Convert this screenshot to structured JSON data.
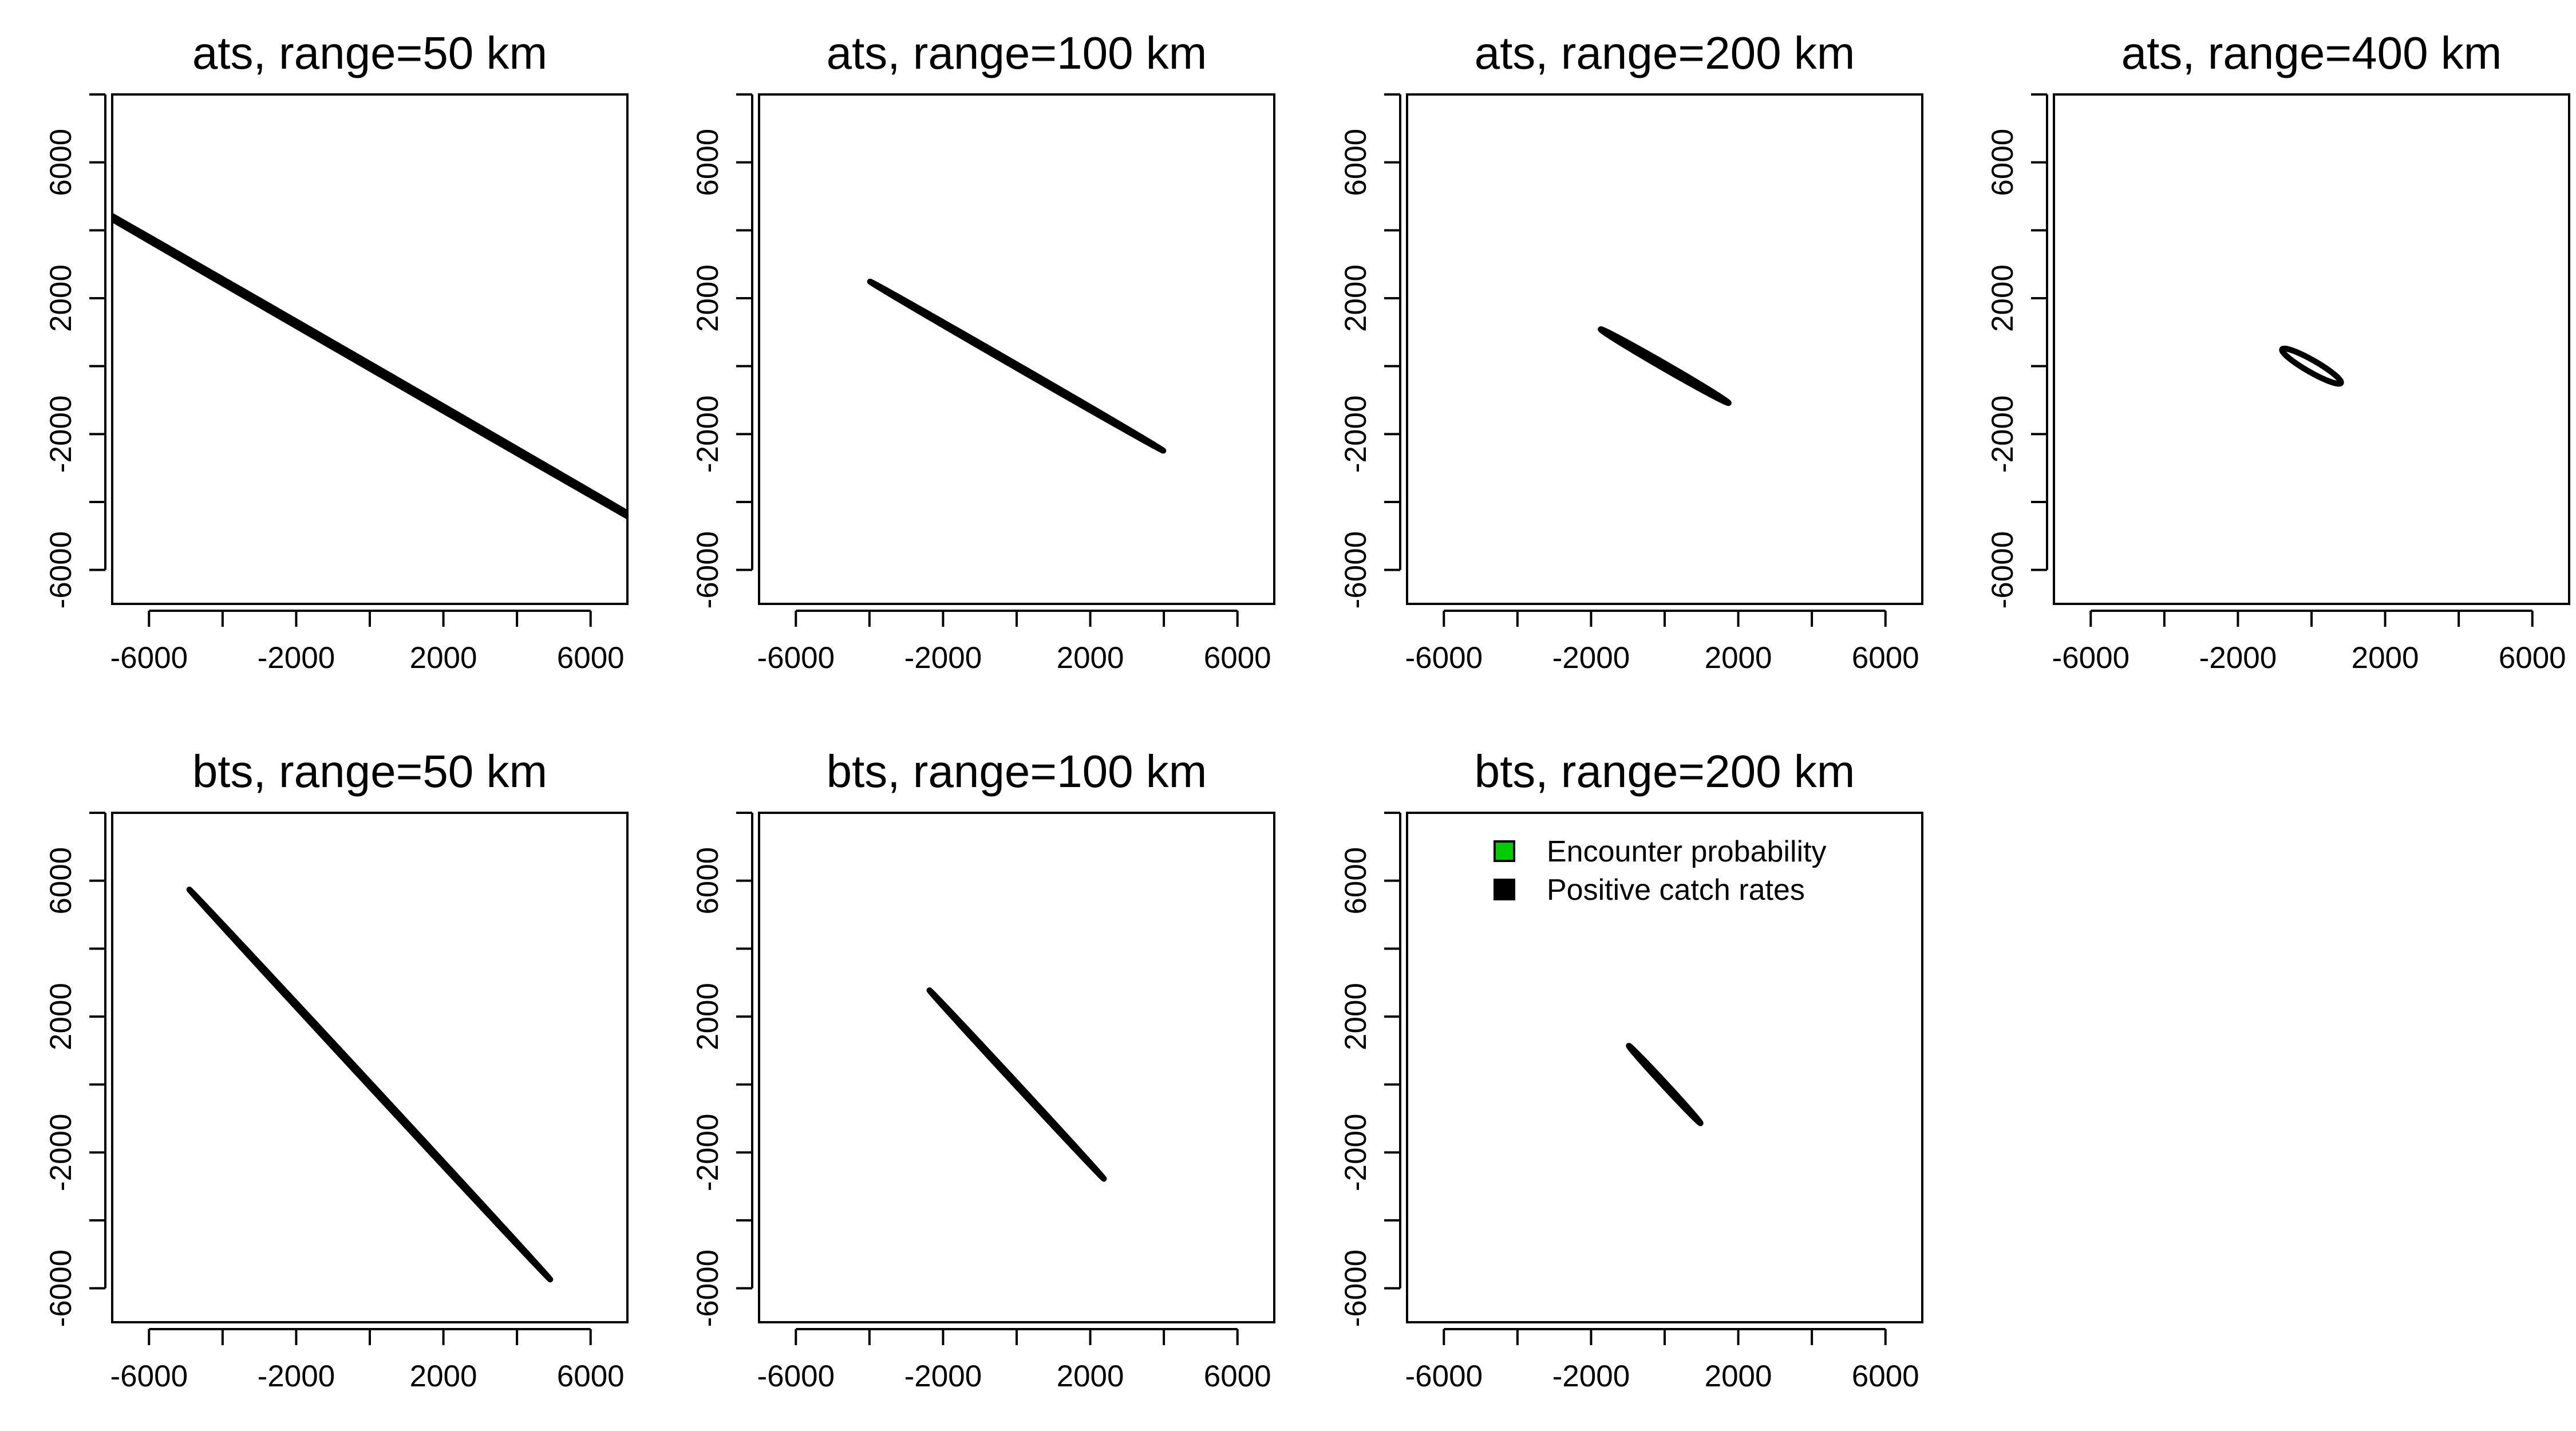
{
  "chart_data": [
    {
      "type": "line",
      "title": "ats, range=50 km",
      "xlim": [
        -7000,
        7000
      ],
      "ylim": [
        -7000,
        8000
      ],
      "x_ticks": [
        -6000,
        -2000,
        2000,
        6000
      ],
      "x_minor_ticks": [
        -4000,
        0,
        4000
      ],
      "y_ticks": [
        -6000,
        -2000,
        2000,
        6000
      ],
      "y_minor_ticks": [
        -4000,
        0,
        4000,
        8000
      ],
      "grid": false,
      "series": [
        {
          "color": "#00cc00",
          "ellipse": {
            "cx": 0,
            "cy": 0,
            "semi_major": 11300,
            "semi_minor": 60,
            "angle_deg": -32
          }
        },
        {
          "color": "#000000",
          "ellipse": {
            "cx": 0,
            "cy": 0,
            "semi_major": 11300,
            "semi_minor": 60,
            "angle_deg": -32
          }
        }
      ]
    },
    {
      "type": "line",
      "title": "ats, range=100 km",
      "xlim": [
        -7000,
        7000
      ],
      "ylim": [
        -7000,
        8000
      ],
      "x_ticks": [
        -6000,
        -2000,
        2000,
        6000
      ],
      "x_minor_ticks": [
        -4000,
        0,
        4000
      ],
      "y_ticks": [
        -6000,
        -2000,
        2000,
        6000
      ],
      "y_minor_ticks": [
        -4000,
        0,
        4000,
        8000
      ],
      "grid": false,
      "series": [
        {
          "color": "#00cc00",
          "ellipse": {
            "cx": 0,
            "cy": 0,
            "semi_major": 4700,
            "semi_minor": 45,
            "angle_deg": -32
          }
        },
        {
          "color": "#000000",
          "ellipse": {
            "cx": 0,
            "cy": 0,
            "semi_major": 4700,
            "semi_minor": 45,
            "angle_deg": -32
          }
        }
      ]
    },
    {
      "type": "line",
      "title": "ats, range=200 km",
      "xlim": [
        -7000,
        7000
      ],
      "ylim": [
        -7000,
        8000
      ],
      "x_ticks": [
        -6000,
        -2000,
        2000,
        6000
      ],
      "x_minor_ticks": [
        -4000,
        0,
        4000
      ],
      "y_ticks": [
        -6000,
        -2000,
        2000,
        6000
      ],
      "y_minor_ticks": [
        -4000,
        0,
        4000,
        8000
      ],
      "grid": false,
      "series": [
        {
          "color": "#00cc00",
          "ellipse": {
            "cx": 0,
            "cy": 0,
            "semi_major": 2050,
            "semi_minor": 70,
            "angle_deg": -32
          }
        },
        {
          "color": "#000000",
          "ellipse": {
            "cx": 0,
            "cy": 0,
            "semi_major": 2050,
            "semi_minor": 70,
            "angle_deg": -32
          }
        }
      ]
    },
    {
      "type": "line",
      "title": "ats, range=400 km",
      "xlim": [
        -7000,
        7000
      ],
      "ylim": [
        -7000,
        8000
      ],
      "x_ticks": [
        -6000,
        -2000,
        2000,
        6000
      ],
      "x_minor_ticks": [
        -4000,
        0,
        4000
      ],
      "y_ticks": [
        -6000,
        -2000,
        2000,
        6000
      ],
      "y_minor_ticks": [
        -4000,
        0,
        4000,
        8000
      ],
      "grid": false,
      "series": [
        {
          "color": "#00cc00",
          "ellipse": {
            "cx": 0,
            "cy": 0,
            "semi_major": 940,
            "semi_minor": 170,
            "angle_deg": -32
          }
        },
        {
          "color": "#000000",
          "ellipse": {
            "cx": 0,
            "cy": 0,
            "semi_major": 940,
            "semi_minor": 170,
            "angle_deg": -32
          }
        }
      ]
    },
    {
      "type": "line",
      "title": "bts, range=50 km",
      "xlim": [
        -7000,
        7000
      ],
      "ylim": [
        -7000,
        8000
      ],
      "x_ticks": [
        -6000,
        -2000,
        2000,
        6000
      ],
      "x_minor_ticks": [
        -4000,
        0,
        4000
      ],
      "y_ticks": [
        -6000,
        -2000,
        2000,
        6000
      ],
      "y_minor_ticks": [
        -4000,
        0,
        4000,
        8000
      ],
      "grid": false,
      "series": [
        {
          "color": "#00cc00",
          "ellipse": {
            "cx": 0,
            "cy": 0,
            "semi_major": 7550,
            "semi_minor": 40,
            "angle_deg": -49.5
          }
        },
        {
          "color": "#000000",
          "ellipse": {
            "cx": 0,
            "cy": 0,
            "semi_major": 7550,
            "semi_minor": 40,
            "angle_deg": -49.5
          }
        }
      ]
    },
    {
      "type": "line",
      "title": "bts, range=100 km",
      "xlim": [
        -7000,
        7000
      ],
      "ylim": [
        -7000,
        8000
      ],
      "x_ticks": [
        -6000,
        -2000,
        2000,
        6000
      ],
      "x_minor_ticks": [
        -4000,
        0,
        4000
      ],
      "y_ticks": [
        -6000,
        -2000,
        2000,
        6000
      ],
      "y_minor_ticks": [
        -4000,
        0,
        4000,
        8000
      ],
      "grid": false,
      "series": [
        {
          "color": "#00cc00",
          "ellipse": {
            "cx": 0,
            "cy": 0,
            "semi_major": 3650,
            "semi_minor": 35,
            "angle_deg": -49.5
          }
        },
        {
          "color": "#000000",
          "ellipse": {
            "cx": 0,
            "cy": 0,
            "semi_major": 3650,
            "semi_minor": 35,
            "angle_deg": -49.5
          }
        }
      ]
    },
    {
      "type": "line",
      "title": "bts, range=200 km",
      "xlim": [
        -7000,
        7000
      ],
      "ylim": [
        -7000,
        8000
      ],
      "x_ticks": [
        -6000,
        -2000,
        2000,
        6000
      ],
      "x_minor_ticks": [
        -4000,
        0,
        4000
      ],
      "y_ticks": [
        -6000,
        -2000,
        2000,
        6000
      ],
      "y_minor_ticks": [
        -4000,
        0,
        4000,
        8000
      ],
      "grid": false,
      "legend": {
        "position": "top",
        "entries": [
          {
            "label": "Encounter probability",
            "color": "#00cc00"
          },
          {
            "label": "Positive catch rates",
            "color": "#000000"
          }
        ]
      },
      "series": [
        {
          "color": "#00cc00",
          "ellipse": {
            "cx": 0,
            "cy": 0,
            "semi_major": 1500,
            "semi_minor": 45,
            "angle_deg": -49.5
          }
        },
        {
          "color": "#000000",
          "ellipse": {
            "cx": 0,
            "cy": 0,
            "semi_major": 1500,
            "semi_minor": 45,
            "angle_deg": -49.5
          }
        }
      ]
    }
  ]
}
